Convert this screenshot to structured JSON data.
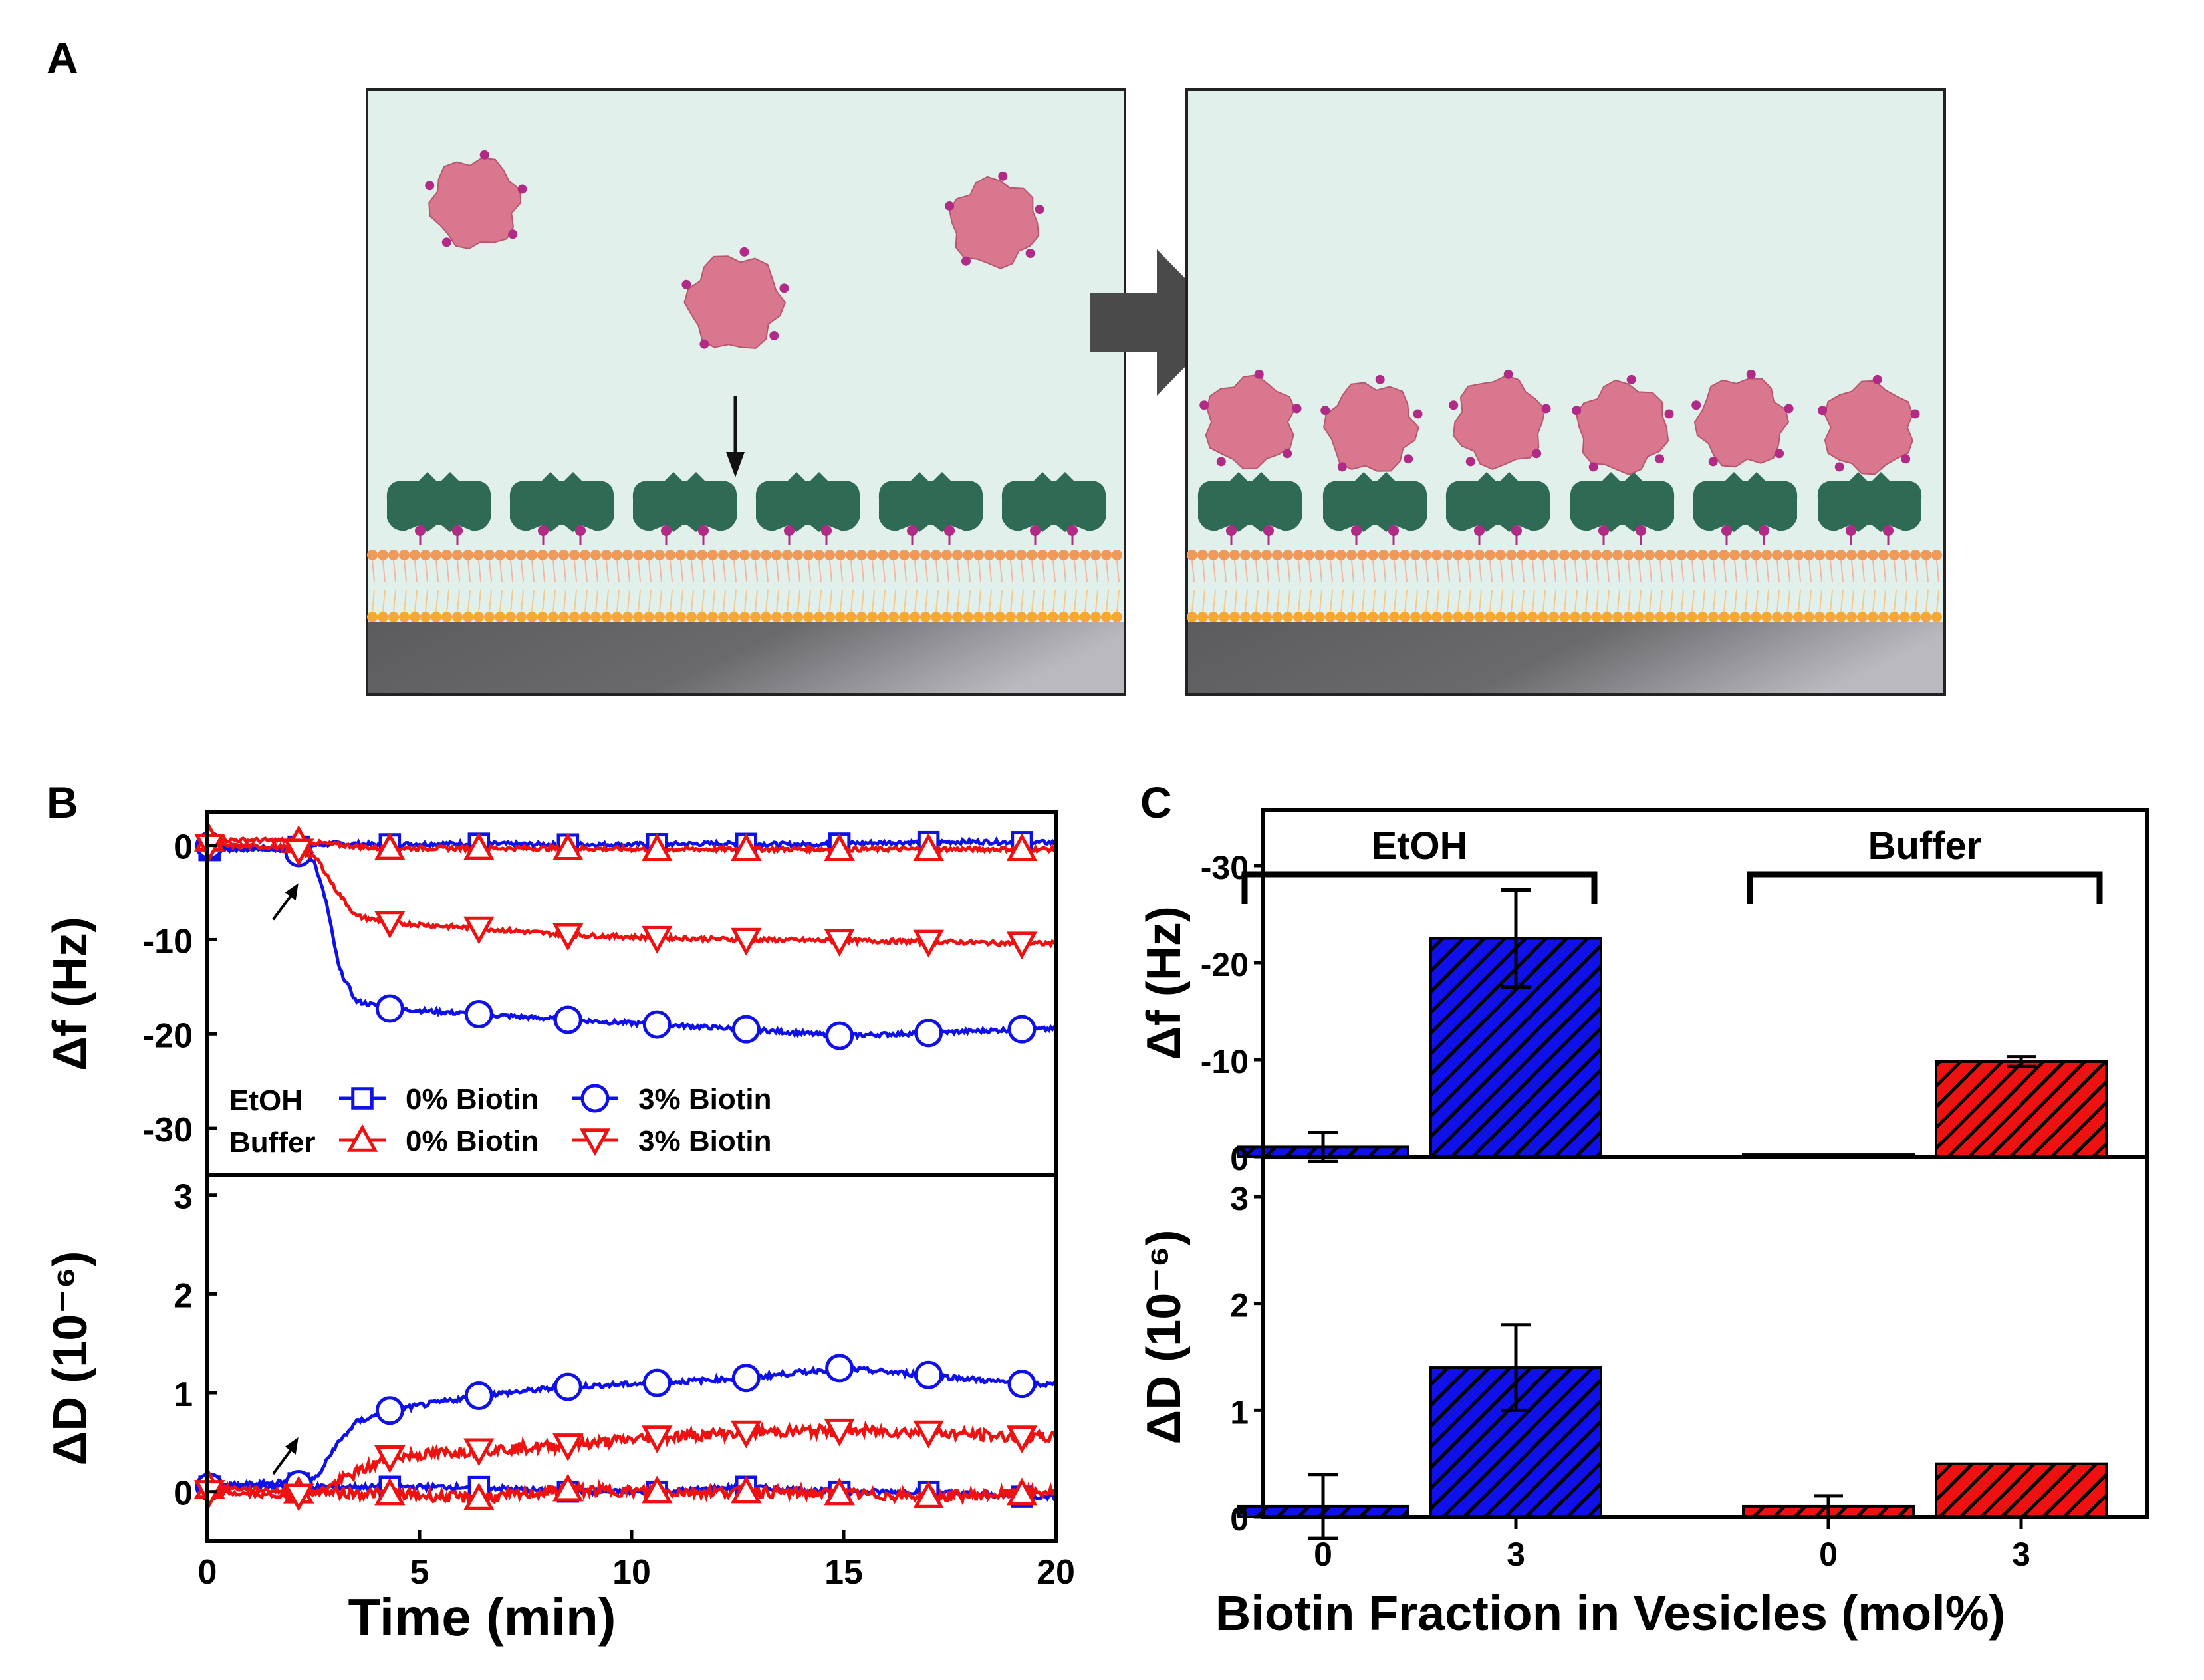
{
  "panels": {
    "a_label": "A",
    "b_label": "B",
    "c_label": "C"
  },
  "colors": {
    "blue": "#1010e8",
    "red": "#ee1111",
    "background_cell": "#e2f0eb",
    "protein": "#d9778f",
    "protein_dots": "#b12a86",
    "streptavidin": "#2f6a55",
    "lipid_head": "#f09a5a",
    "lipid_head_lower": "#f5a833",
    "substrate": "#76767a",
    "arrow": "#4a4a4a"
  },
  "chart_data": [
    {
      "panel": "B",
      "type": "line",
      "xlabel": "Time (min)",
      "xlim": [
        0,
        20
      ],
      "xticks": [
        0,
        5,
        10,
        15,
        20
      ],
      "subplots": [
        {
          "ylabel": "Δf (Hz)",
          "ylim": [
            -35,
            3.5
          ],
          "yticks": [
            0,
            -10,
            -20,
            -30
          ],
          "event_arrow_time": 2.3,
          "series": [
            {
              "name": "EtOH 0% Biotin",
              "group": "EtOH",
              "label": "0% Biotin",
              "color": "blue",
              "marker": "square",
              "x": [
                0,
                2,
                2.5,
                3,
                4,
                6,
                8,
                10,
                12,
                14,
                16,
                18,
                20
              ],
              "y": [
                -0.5,
                -0.2,
                0,
                0.2,
                0.1,
                0.2,
                0.1,
                0.1,
                0.2,
                0.1,
                0.3,
                0.4,
                0.3
              ]
            },
            {
              "name": "EtOH 3% Biotin",
              "group": "EtOH",
              "label": "3% Biotin",
              "color": "blue",
              "marker": "circle",
              "x": [
                0,
                2,
                2.5,
                2.8,
                3.1,
                3.5,
                4.3,
                6.4,
                8.5,
                10.6,
                12.7,
                14.9,
                17,
                19.2,
                20
              ],
              "y": [
                0,
                -0.5,
                -1.5,
                -6,
                -13,
                -16.5,
                -17.3,
                -17.9,
                -18.5,
                -19,
                -19.5,
                -20.2,
                -19.9,
                -19.5,
                -19.5
              ]
            },
            {
              "name": "Buffer 0% Biotin",
              "group": "Buffer",
              "label": "0% Biotin",
              "color": "red",
              "marker": "triangle-up",
              "x": [
                0,
                2,
                4,
                6,
                8,
                10,
                12,
                14,
                16,
                18,
                20
              ],
              "y": [
                0.6,
                0.5,
                -0.3,
                -0.3,
                -0.3,
                -0.4,
                -0.4,
                -0.4,
                -0.4,
                -0.4,
                -0.4
              ]
            },
            {
              "name": "Buffer 3% Biotin",
              "group": "Buffer",
              "label": "3% Biotin",
              "color": "red",
              "marker": "triangle-down",
              "x": [
                0,
                2,
                2.6,
                3,
                3.5,
                4.3,
                6.4,
                8.5,
                10.6,
                12.7,
                14.9,
                17,
                19.2,
                20
              ],
              "y": [
                0,
                -0.2,
                -1.5,
                -4.5,
                -7.5,
                -8.2,
                -8.8,
                -9.5,
                -9.8,
                -10,
                -10.1,
                -10.2,
                -10.4,
                -10.4
              ]
            }
          ]
        },
        {
          "ylabel": "ΔD (10⁻⁶)",
          "ylim": [
            -0.5,
            3.2
          ],
          "yticks": [
            0,
            1,
            2,
            3
          ],
          "event_arrow_time": 2.3,
          "series": [
            {
              "name": "EtOH 0% Biotin",
              "color": "blue",
              "marker": "square",
              "x": [
                0,
                2,
                2.5,
                4,
                6.3,
                8.5,
                10.6,
                12.7,
                14.9,
                17,
                19.2,
                20
              ],
              "y": [
                0.05,
                0.1,
                0.05,
                0.05,
                0.05,
                0.0,
                0.0,
                0.05,
                0.0,
                0.0,
                -0.05,
                -0.05
              ]
            },
            {
              "name": "EtOH 3% Biotin",
              "color": "blue",
              "marker": "circle",
              "x": [
                0,
                2,
                2.6,
                3,
                3.5,
                4.3,
                6.4,
                8.5,
                10.6,
                12.7,
                14.9,
                17,
                19.2,
                20
              ],
              "y": [
                0.05,
                0.05,
                0.15,
                0.45,
                0.7,
                0.82,
                0.97,
                1.06,
                1.1,
                1.15,
                1.25,
                1.18,
                1.09,
                1.08
              ]
            },
            {
              "name": "Buffer 0% Biotin",
              "color": "red",
              "marker": "triangle-up",
              "x": [
                0,
                2,
                4.3,
                6.4,
                8.5,
                10.6,
                12.7,
                14.9,
                17,
                19.2,
                20
              ],
              "y": [
                0.05,
                0.0,
                -0.02,
                -0.07,
                0.02,
                0.0,
                0.0,
                -0.02,
                -0.05,
                -0.02,
                0.0
              ]
            },
            {
              "name": "Buffer 3% Biotin",
              "color": "red",
              "marker": "triangle-down",
              "x": [
                0,
                2,
                2.6,
                3.3,
                4.3,
                6.4,
                8.5,
                10.6,
                12.7,
                14.9,
                17,
                19.2,
                20
              ],
              "y": [
                0.0,
                -0.05,
                0.0,
                0.15,
                0.35,
                0.42,
                0.47,
                0.55,
                0.6,
                0.62,
                0.6,
                0.55,
                0.55
              ]
            }
          ]
        }
      ],
      "legend": {
        "rows": [
          {
            "group": "EtOH",
            "entries": [
              "0% Biotin",
              "3% Biotin"
            ]
          },
          {
            "group": "Buffer",
            "entries": [
              "0% Biotin",
              "3% Biotin"
            ]
          }
        ],
        "placement": "bottom-left of top subplot"
      }
    },
    {
      "panel": "C",
      "type": "bar",
      "xlabel": "Biotin Fraction in Vesicles (mol%)",
      "categories": [
        "0",
        "3",
        "0",
        "3"
      ],
      "groups": [
        {
          "label": "EtOH",
          "categories": [
            0,
            1
          ]
        },
        {
          "label": "Buffer",
          "categories": [
            2,
            3
          ]
        }
      ],
      "bar_colors": [
        "blue",
        "blue",
        "red",
        "red"
      ],
      "hatch": "diagonal",
      "subplots": [
        {
          "ylabel": "Δf (Hz)",
          "y_inverted": true,
          "ylim": [
            0,
            -35
          ],
          "yticks": [
            0,
            -10,
            -20,
            -30
          ],
          "values": [
            -1.0,
            -22.5,
            -0.2,
            -9.8
          ],
          "errors": [
            1.5,
            5.0,
            0.0,
            0.5
          ]
        },
        {
          "ylabel": "ΔD (10⁻⁶)",
          "ylim": [
            0,
            3.3
          ],
          "yticks": [
            0,
            1,
            2,
            3
          ],
          "values": [
            0.1,
            1.4,
            0.1,
            0.5
          ],
          "errors": [
            0.3,
            0.4,
            0.1,
            0.0
          ]
        }
      ]
    }
  ]
}
